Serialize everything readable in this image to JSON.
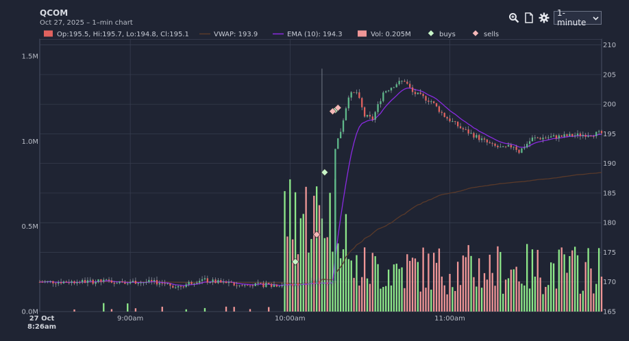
{
  "header": {
    "title": "QCOM",
    "subtitle": "Oct 27, 2025 – 1–min chart",
    "interval_value": "1-minute"
  },
  "toolbar": {
    "icons": [
      "zoom-icon",
      "document-icon",
      "gear-icon",
      "chevron-down-icon"
    ]
  },
  "legend": {
    "ohlc": "Op:195.5, Hi:195.7, Lo:194.8, Cl:195.1",
    "vwap": "VWAP: 193.9",
    "ema": "EMA (10): 194.3",
    "vol": "Vol: 0.205M",
    "buys": "buys",
    "sells": "sells"
  },
  "colors": {
    "background": "#1f2433",
    "up": "#5fb88a",
    "down": "#e0625f",
    "vol_up": "#8ee88a",
    "vol_down": "#ef9697",
    "vwap": "#5a3a2a",
    "ema": "#8a2be2",
    "buys": "#c8f5c8",
    "sells": "#f5b8b8",
    "grid": "#3a4052"
  },
  "chart_data": {
    "type": "candlestick",
    "price_axis": {
      "ticks": [
        "210",
        "205",
        "200",
        "195",
        "190",
        "185",
        "180",
        "175",
        "170",
        "165"
      ],
      "range": [
        165,
        211
      ]
    },
    "volume_axis": {
      "ticks": [
        "1.5M",
        "1.0M",
        "0.5M",
        "0.0M"
      ],
      "range": [
        0,
        1.6
      ]
    },
    "x_axis": {
      "date_label": "27 Oct",
      "start_label": "8:26am",
      "ticks": [
        "9:00am",
        "10:00am",
        "11:00am"
      ]
    },
    "key_points": {
      "open_level": 170,
      "breakout_time": "9:58am",
      "peak_high": 206,
      "intraday_high_close": 204,
      "late_low": 191.5,
      "last_close": 195.1
    },
    "last_bar": {
      "open": 195.5,
      "high": 195.7,
      "low": 194.8,
      "close": 195.1,
      "volume_m": 0.205
    },
    "vwap_last": 193.9,
    "ema10_last": 194.3,
    "buys": [
      {
        "time": "10:02am",
        "price": 173.4
      },
      {
        "time": "10:13am",
        "price": 188.5
      },
      {
        "time": "10:17am",
        "price": 199
      }
    ],
    "sells": [
      {
        "time": "10:10am",
        "price": 178
      },
      {
        "time": "10:16am",
        "price": 198.8
      },
      {
        "time": "10:18am",
        "price": 199.4
      }
    ]
  }
}
